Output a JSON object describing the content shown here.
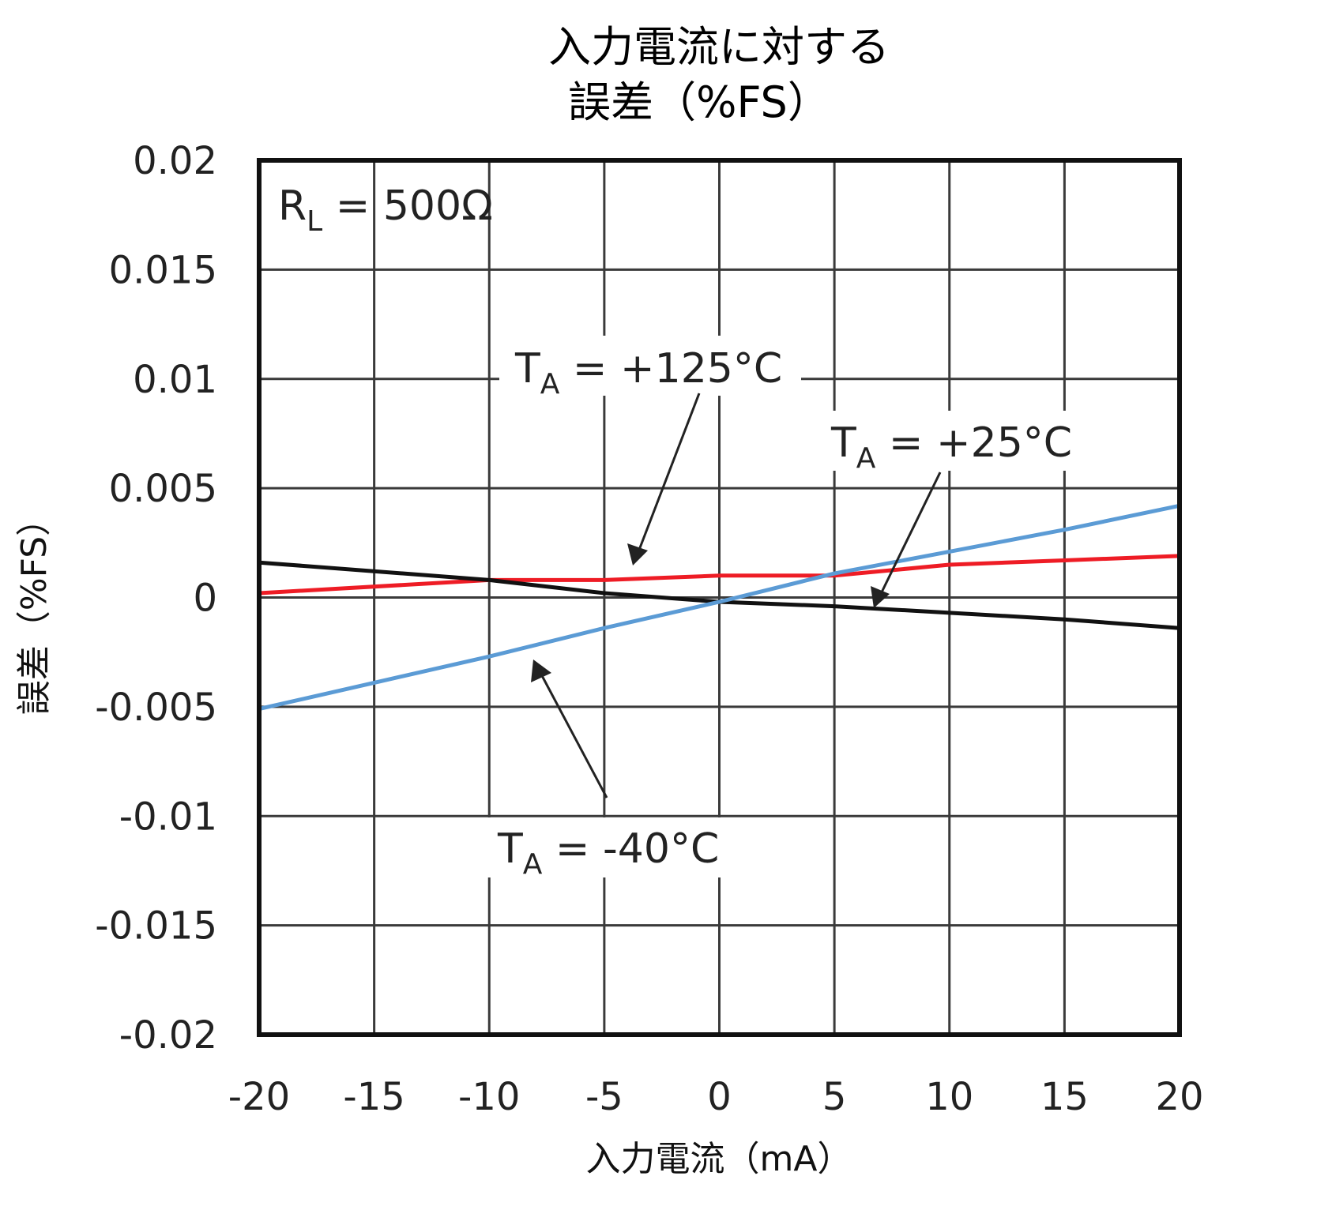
{
  "chart_data": {
    "type": "line",
    "title_line1": "入力電流に対する",
    "title_line2": "誤差（%FS）",
    "xlabel": "入力電流（mA）",
    "ylabel": "誤差（%FS）",
    "xlim": [
      -20,
      20
    ],
    "ylim": [
      -0.02,
      0.02
    ],
    "x_ticks": [
      "-20",
      "-15",
      "-10",
      "-5",
      "0",
      "5",
      "10",
      "15",
      "20"
    ],
    "y_ticks": [
      "0.02",
      "0.015",
      "0.01",
      "0.005",
      "0",
      "-0.005",
      "-0.01",
      "-0.015",
      "-0.02"
    ],
    "grid": true,
    "condition": {
      "main": "R",
      "sub": "L",
      "rest": " = 500Ω"
    },
    "series": [
      {
        "name": "TA = +125°C",
        "color": "#ee1c25",
        "x": [
          -20,
          -10,
          -5,
          0,
          5,
          10,
          15,
          20
        ],
        "y": [
          0.0002,
          0.0008,
          0.0008,
          0.001,
          0.001,
          0.0015,
          0.0017,
          0.0019
        ]
      },
      {
        "name": "TA = +25°C",
        "color": "#111111",
        "x": [
          -20,
          -10,
          -5,
          0,
          5,
          10,
          15,
          20
        ],
        "y": [
          0.0016,
          0.0008,
          0.0002,
          -0.0002,
          -0.0004,
          -0.0007,
          -0.001,
          -0.0014
        ]
      },
      {
        "name": "TA = -40°C",
        "color": "#5b9bd5",
        "x": [
          -20,
          -15,
          -10,
          -5,
          0,
          5,
          10,
          15,
          20
        ],
        "y": [
          -0.0051,
          -0.0039,
          -0.0027,
          -0.0014,
          -0.0002,
          0.0011,
          0.0021,
          0.0031,
          0.0042
        ]
      }
    ],
    "annotations": [
      {
        "main": "T",
        "sub": "A",
        "rest": " = +125°C",
        "series": "TA = +125°C"
      },
      {
        "main": "T",
        "sub": "A",
        "rest": " = +25°C",
        "series": "TA = +25°C"
      },
      {
        "main": "T",
        "sub": "A",
        "rest": " = -40°C",
        "series": "TA = -40°C"
      }
    ]
  }
}
